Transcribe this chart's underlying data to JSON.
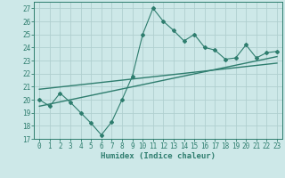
{
  "xlabel": "Humidex (Indice chaleur)",
  "x_data": [
    0,
    1,
    2,
    3,
    4,
    5,
    6,
    7,
    8,
    9,
    10,
    11,
    12,
    13,
    14,
    15,
    16,
    17,
    18,
    19,
    20,
    21,
    22,
    23
  ],
  "y_data": [
    20.0,
    19.5,
    20.5,
    19.8,
    19.0,
    18.2,
    17.3,
    18.3,
    20.0,
    21.8,
    25.0,
    27.0,
    26.0,
    25.3,
    24.5,
    25.0,
    24.0,
    23.8,
    23.1,
    23.2,
    24.2,
    23.2,
    23.6,
    23.7
  ],
  "trend1_x": [
    0,
    23
  ],
  "trend1_y": [
    19.5,
    23.3
  ],
  "trend2_x": [
    0,
    23
  ],
  "trend2_y": [
    20.8,
    22.8
  ],
  "line_color": "#2e7d6e",
  "bg_color": "#cde8e8",
  "grid_color": "#b0cfcf",
  "ylim": [
    17,
    27.5
  ],
  "xlim": [
    -0.5,
    23.5
  ],
  "yticks": [
    17,
    18,
    19,
    20,
    21,
    22,
    23,
    24,
    25,
    26,
    27
  ],
  "xticks": [
    0,
    1,
    2,
    3,
    4,
    5,
    6,
    7,
    8,
    9,
    10,
    11,
    12,
    13,
    14,
    15,
    16,
    17,
    18,
    19,
    20,
    21,
    22,
    23
  ],
  "tick_fontsize": 5.5,
  "xlabel_fontsize": 6.5
}
